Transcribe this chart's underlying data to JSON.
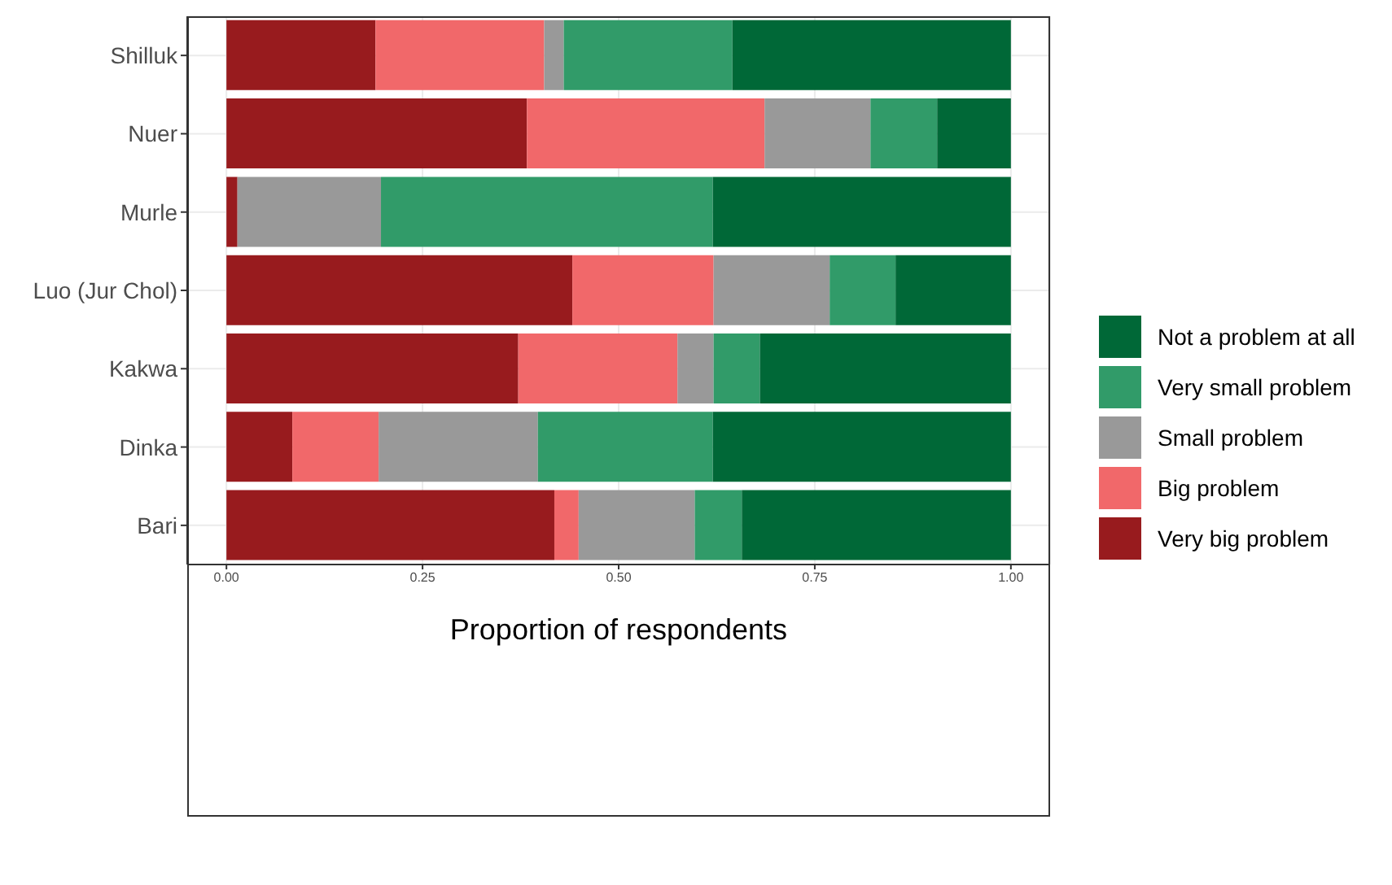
{
  "chart_data": {
    "type": "bar",
    "orientation": "horizontal",
    "stacked": true,
    "xlabel": "Proportion of respondents",
    "categories": [
      "Shilluk",
      "Nuer",
      "Murle",
      "Luo (Jur Chol)",
      "Kakwa",
      "Dinka",
      "Bari"
    ],
    "series": [
      {
        "name": "Very big problem",
        "color": "#981b1e",
        "values": [
          0.19,
          0.383,
          0.014,
          0.441,
          0.372,
          0.084,
          0.418
        ]
      },
      {
        "name": "Big problem",
        "color": "#f1686a",
        "values": [
          0.215,
          0.303,
          0,
          0.18,
          0.203,
          0.11,
          0.031
        ]
      },
      {
        "name": "Small problem",
        "color": "#999999",
        "values": [
          0.025,
          0.135,
          0.183,
          0.148,
          0.046,
          0.203,
          0.148
        ]
      },
      {
        "name": "Very small problem",
        "color": "#319b69",
        "values": [
          0.215,
          0.085,
          0.423,
          0.084,
          0.059,
          0.223,
          0.06
        ]
      },
      {
        "name": "Not a problem at all",
        "color": "#006837",
        "values": [
          0.355,
          0.094,
          0.38,
          0.147,
          0.32,
          0.38,
          0.343
        ]
      }
    ],
    "xlim": [
      -0.05,
      1.05
    ],
    "xticks": [
      {
        "value": 0,
        "label": "0.00"
      },
      {
        "value": 0.25,
        "label": "0.25"
      },
      {
        "value": 0.5,
        "label": "0.50"
      },
      {
        "value": 0.75,
        "label": "0.75"
      },
      {
        "value": 1,
        "label": "1.00"
      }
    ],
    "grid": true,
    "legend": "right"
  }
}
